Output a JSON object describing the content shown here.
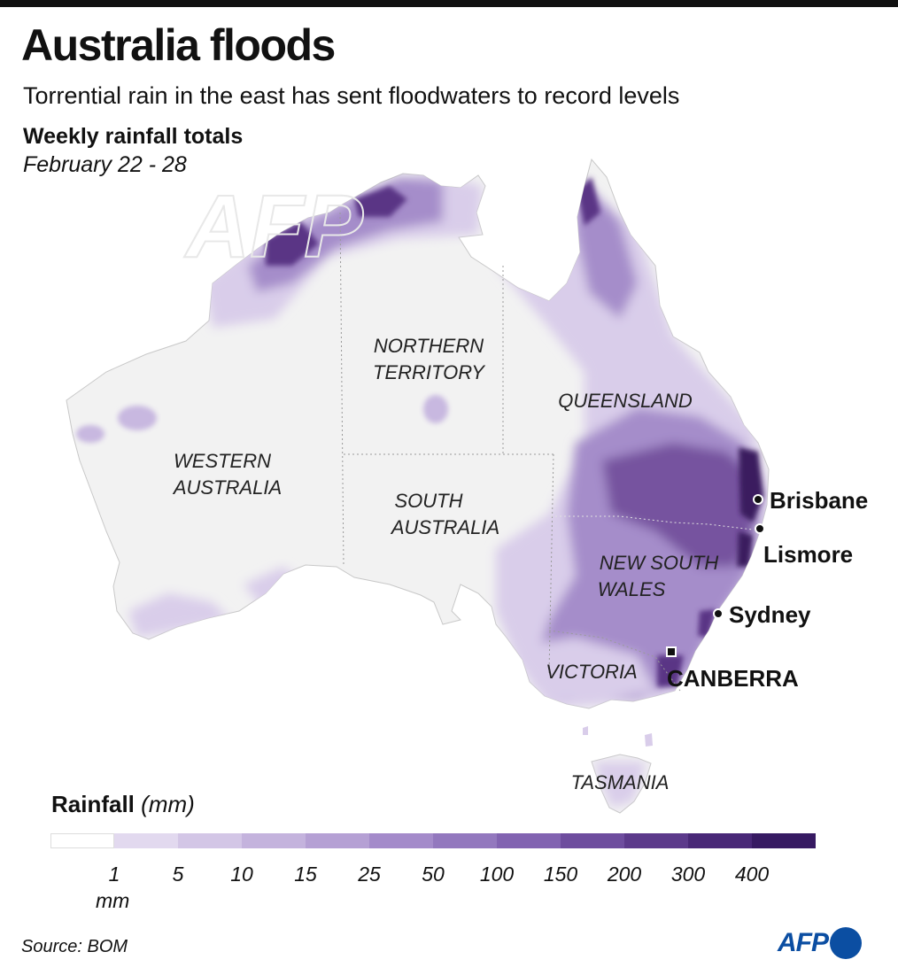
{
  "header": {
    "title": "Australia floods",
    "subtitle": "Torrential rain in the east has sent floodwaters to record levels"
  },
  "map": {
    "heading": "Weekly rainfall totals",
    "date_range": "February 22 - 28",
    "watermark": "AFP",
    "regions": {
      "northern_territory": [
        "NORTHERN",
        "TERRITORY"
      ],
      "queensland": [
        "QUEENSLAND"
      ],
      "western_australia": [
        "WESTERN",
        "AUSTRALIA"
      ],
      "south_australia": [
        "SOUTH",
        "AUSTRALIA"
      ],
      "new_south_wales": [
        "NEW SOUTH",
        "WALES"
      ],
      "victoria": [
        "VICTORIA"
      ],
      "tasmania": [
        "TASMANIA"
      ]
    },
    "cities": {
      "brisbane": "Brisbane",
      "lismore": "Lismore",
      "sydney": "Sydney",
      "canberra": "CANBERRA"
    },
    "land_color": "#f2f2f2",
    "rain_colors": {
      "light": "#d9cdea",
      "medium": "#a58dca",
      "heavy": "#76539f",
      "extreme": "#3b1a5e"
    }
  },
  "legend": {
    "title_bold": "Rainfall",
    "title_unit": "(mm)",
    "swatches": [
      "#ffffff",
      "#e2d9ef",
      "#d3c6e6",
      "#c4b3dd",
      "#b5a0d4",
      "#a48bca",
      "#9378be",
      "#8263b1",
      "#6e4d9e",
      "#5c3a8b",
      "#492877",
      "#371a62"
    ],
    "ticks": [
      "1",
      "5",
      "10",
      "15",
      "25",
      "50",
      "100",
      "150",
      "200",
      "300",
      "400"
    ],
    "unit": "mm"
  },
  "footer": {
    "source": "Source: BOM",
    "logo_text": "AFP",
    "logo_color": "#0b4ea2"
  }
}
